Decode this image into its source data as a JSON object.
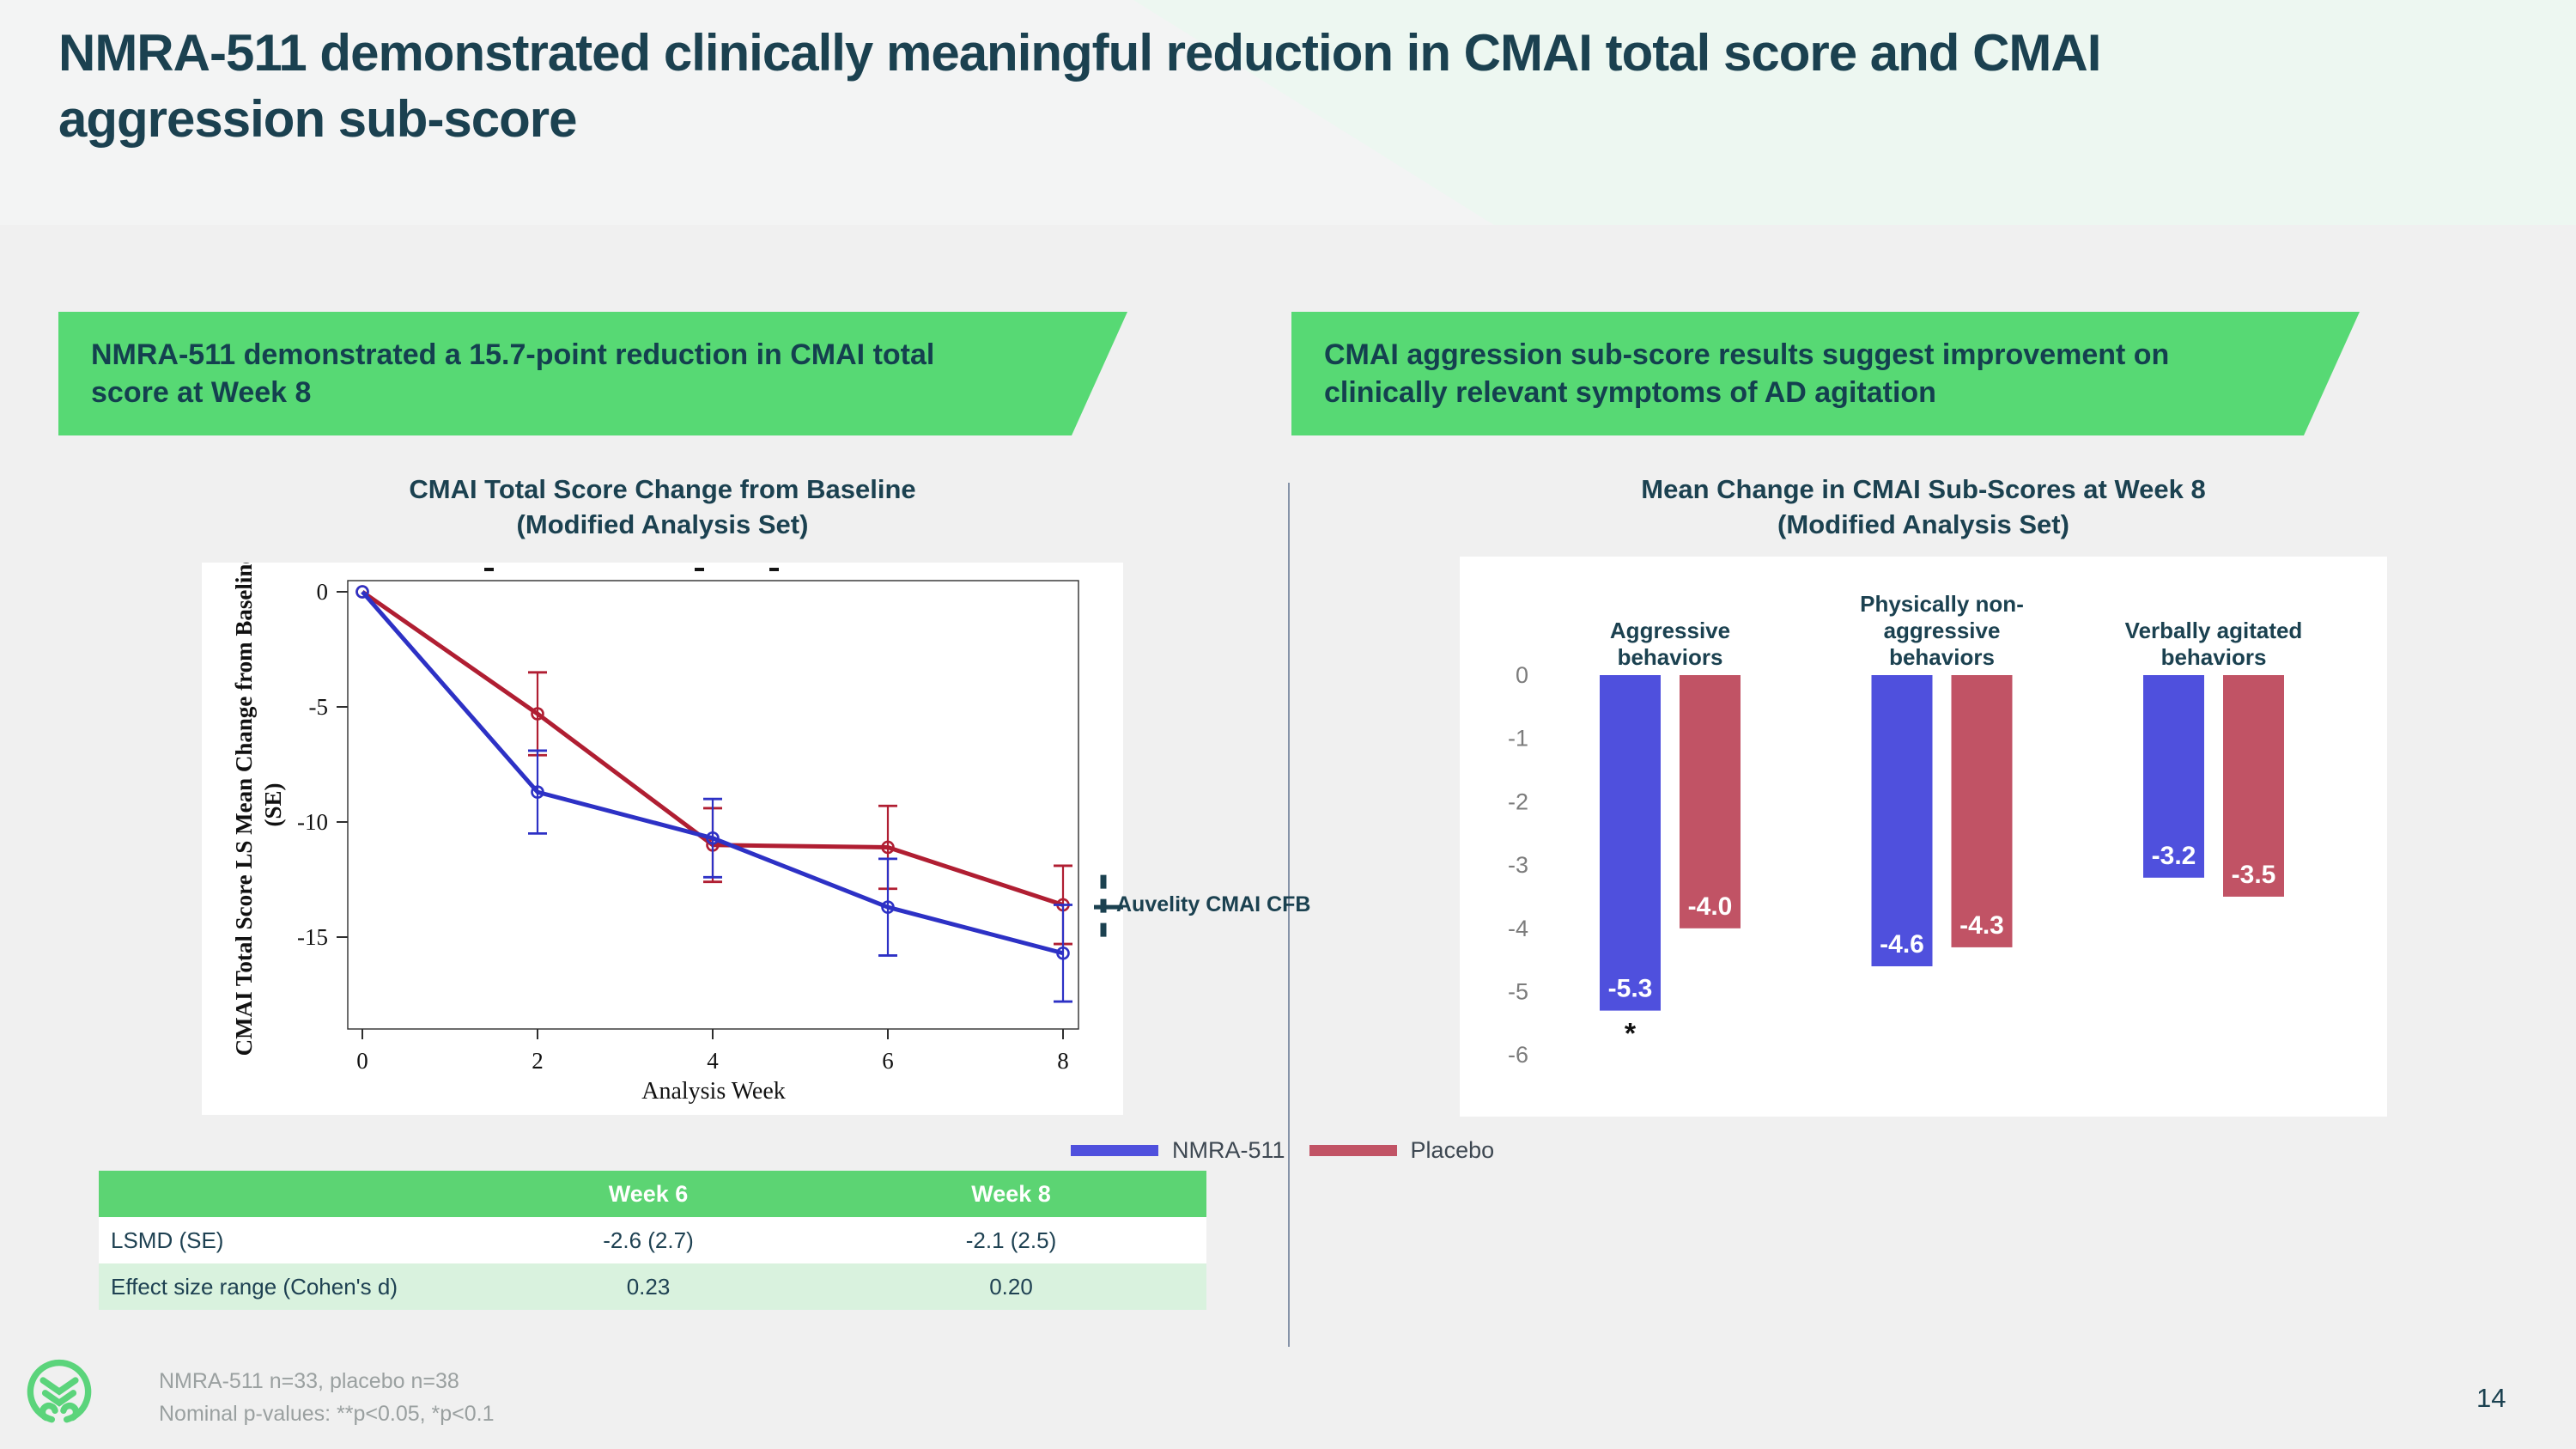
{
  "slide": {
    "title": "NMRA-511 demonstrated clinically meaningful reduction in CMAI total score and CMAI aggression sub-score",
    "page_number": "14"
  },
  "colors": {
    "accent_green": "#57d974",
    "table_header_green": "#5cd473",
    "light_green_row": "#d9f2de",
    "dark_teal": "#1b4150",
    "bar_blue": "#4f50dd",
    "bar_red": "#c15365",
    "line_blue": "#2d31c5",
    "line_red": "#b01e32",
    "logo_green": "#5bd47b",
    "footnote_gray": "#9aa0a0",
    "axis_gray": "#7c7c7c"
  },
  "left_panel": {
    "banner": "NMRA-511 demonstrated a 15.7-point reduction in CMAI total score at Week 8",
    "chart_title": "CMAI Total Score Change from Baseline",
    "chart_subtitle": "(Modified Analysis Set)"
  },
  "right_panel": {
    "banner": "CMAI aggression sub-score results suggest improvement on clinically relevant symptoms of AD agitation",
    "chart_title": "Mean Change in CMAI Sub-Scores at Week 8",
    "chart_subtitle": "(Modified Analysis Set)"
  },
  "legend": [
    {
      "label": "NMRA-511",
      "color": "#4f50dd"
    },
    {
      "label": "Placebo",
      "color": "#c15365"
    }
  ],
  "table": {
    "headers": [
      "",
      "Week 6",
      "Week 8"
    ],
    "rows": [
      [
        "LSMD (SE)",
        "-2.6 (2.7)",
        "-2.1 (2.5)"
      ],
      [
        "Effect size range (Cohen's d)",
        "0.23",
        "0.20"
      ]
    ]
  },
  "footnotes": [
    "NMRA-511 n=33, placebo n=38",
    "Nominal p-values: **p<0.05, *p<0.1"
  ],
  "chart_data": [
    {
      "type": "line",
      "title": "CMAI Total Score Change from Baseline (Modified Analysis Set)",
      "xlabel": "Analysis Week",
      "ylabel": "CMAI Total Score LS Mean Change from Baseline",
      "ylabel_line2": "(SE)",
      "x": [
        0,
        2,
        4,
        6,
        8
      ],
      "xticks": [
        0,
        2,
        4,
        6,
        8
      ],
      "yticks": [
        0,
        -5,
        -10,
        -15
      ],
      "ylim": [
        1,
        -19.5
      ],
      "grid": false,
      "legend_position": "below-right",
      "series": [
        {
          "name": "NMRA-511",
          "color": "#2d31c5",
          "values": [
            0,
            -8.7,
            -10.7,
            -13.7,
            -15.7
          ],
          "se": [
            0,
            1.8,
            1.7,
            2.1,
            2.1
          ]
        },
        {
          "name": "Placebo",
          "color": "#b01e32",
          "values": [
            0,
            -5.3,
            -11.0,
            -11.1,
            -13.6
          ],
          "se": [
            0,
            1.8,
            1.6,
            1.8,
            1.7
          ]
        }
      ],
      "annotation": {
        "label": "Auvelity CMAI CFB",
        "y_tick": -13.7,
        "y_top": -12.3,
        "y_bottom": -15.3
      }
    },
    {
      "type": "bar",
      "title": "Mean Change in CMAI Sub-Scores at Week 8 (Modified Analysis Set)",
      "categories": [
        "Aggressive behaviors",
        "Physically non-aggressive behaviors",
        "Verbally agitated behaviors"
      ],
      "categories_lines": [
        [
          "Aggressive",
          "behaviors"
        ],
        [
          "Physically non-",
          "aggressive",
          "behaviors"
        ],
        [
          "Verbally agitated",
          "behaviors"
        ]
      ],
      "yticks": [
        0,
        -1,
        -2,
        -3,
        -4,
        -5,
        -6
      ],
      "ylim": [
        0,
        -6
      ],
      "grid": false,
      "series": [
        {
          "name": "NMRA-511",
          "color": "#4f50dd",
          "values": [
            -5.3,
            -4.6,
            -3.2
          ],
          "value_labels": [
            "-5.3",
            "-4.6",
            "-3.2"
          ],
          "significance": [
            "*",
            "",
            ""
          ]
        },
        {
          "name": "Placebo",
          "color": "#c15365",
          "values": [
            -4.0,
            -4.3,
            -3.5
          ],
          "value_labels": [
            "-4.0",
            "-4.3",
            "-3.5"
          ],
          "significance": [
            "",
            "",
            ""
          ]
        }
      ]
    }
  ]
}
